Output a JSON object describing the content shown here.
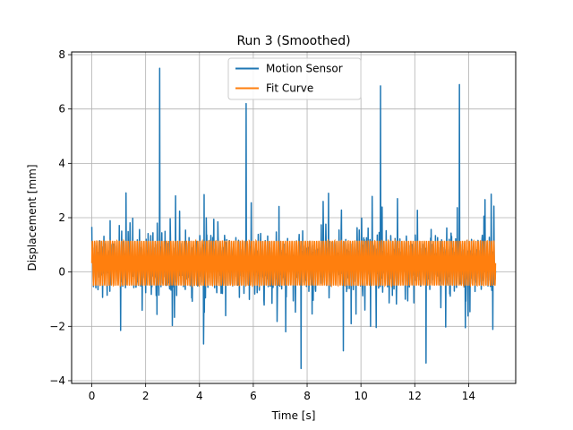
{
  "chart_data": {
    "type": "line",
    "title": "Run 3 (Smoothed)",
    "xlabel": "Time [s]",
    "ylabel": "Displacement [mm]",
    "xlim": [
      -0.75,
      15.75
    ],
    "ylim": [
      -4.1,
      8.1
    ],
    "xticks": [
      0,
      2,
      4,
      6,
      8,
      10,
      12,
      14
    ],
    "yticks": [
      -4,
      -2,
      0,
      2,
      4,
      6,
      8
    ],
    "grid": true,
    "legend_position": "top-center",
    "series": [
      {
        "name": "Motion Sensor",
        "color": "#1f77b4",
        "signal": "noisy displacement around 0.3 mm with sparse spikes",
        "x_range": [
          0,
          15
        ],
        "samples": 1500,
        "peaks": [
          {
            "x": 2.52,
            "y": 7.5
          },
          {
            "x": 5.73,
            "y": 6.2
          },
          {
            "x": 10.73,
            "y": 6.85
          },
          {
            "x": 13.66,
            "y": 6.9
          },
          {
            "x": 4.17,
            "y": 2.85
          },
          {
            "x": 8.8,
            "y": 2.9
          },
          {
            "x": 5.92,
            "y": 2.55
          },
          {
            "x": 11.36,
            "y": 2.7
          }
        ],
        "troughs": [
          {
            "x": 7.78,
            "y": -3.55
          },
          {
            "x": 12.42,
            "y": -3.35
          },
          {
            "x": 9.35,
            "y": -2.9
          },
          {
            "x": 4.15,
            "y": -2.65
          },
          {
            "x": 1.07,
            "y": -2.15
          },
          {
            "x": 7.2,
            "y": -2.2
          },
          {
            "x": 13.88,
            "y": -2.05
          },
          {
            "x": 10.36,
            "y": -2.0
          }
        ]
      },
      {
        "name": "Fit Curve",
        "color": "#ff7f0e",
        "signal": "fast oscillation between bounds",
        "x_range": [
          0,
          15
        ],
        "y_min": -0.5,
        "y_max": 1.15,
        "frequency_hz": 12
      }
    ]
  }
}
